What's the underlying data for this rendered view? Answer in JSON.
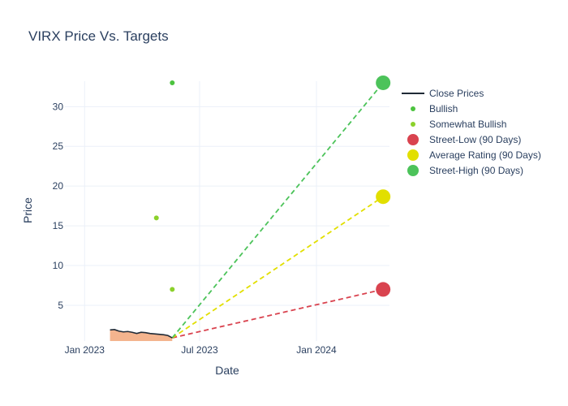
{
  "chart_data": {
    "type": "line",
    "title": "VIRX Price Vs. Targets",
    "xlabel": "Date",
    "ylabel": "Price",
    "xlim": [
      "2022-12-01",
      "2024-04-25"
    ],
    "ylim": [
      0.5,
      33.2
    ],
    "grid": true,
    "legend_placement": "right",
    "x_ticks": [
      {
        "date": "2023-01-01",
        "label": "Jan 2023"
      },
      {
        "date": "2023-07-01",
        "label": "Jul 2023"
      },
      {
        "date": "2024-01-01",
        "label": "Jan 2024"
      }
    ],
    "y_ticks": [
      5,
      10,
      15,
      20,
      25,
      30
    ],
    "colors": {
      "close": "#1f2a36",
      "close_fill": "#f4b48e",
      "bullish": "#4cc33f",
      "somewhat_bullish": "#8bd12b",
      "street_low": "#d9434f",
      "average": "#e2df00",
      "street_high": "#4cc35a"
    },
    "close_prices": [
      {
        "x": "2023-02-10",
        "y": 1.9
      },
      {
        "x": "2023-02-17",
        "y": 1.95
      },
      {
        "x": "2023-02-24",
        "y": 1.75
      },
      {
        "x": "2023-03-03",
        "y": 1.65
      },
      {
        "x": "2023-03-10",
        "y": 1.7
      },
      {
        "x": "2023-03-17",
        "y": 1.6
      },
      {
        "x": "2023-03-24",
        "y": 1.45
      },
      {
        "x": "2023-03-31",
        "y": 1.6
      },
      {
        "x": "2023-04-07",
        "y": 1.55
      },
      {
        "x": "2023-04-14",
        "y": 1.45
      },
      {
        "x": "2023-04-21",
        "y": 1.4
      },
      {
        "x": "2023-04-28",
        "y": 1.35
      },
      {
        "x": "2023-05-05",
        "y": 1.3
      },
      {
        "x": "2023-05-12",
        "y": 1.2
      },
      {
        "x": "2023-05-19",
        "y": 0.9
      }
    ],
    "bullish": [
      {
        "x": "2023-05-19",
        "y": 33
      }
    ],
    "somewhat_bullish": [
      {
        "x": "2023-04-24",
        "y": 16
      },
      {
        "x": "2023-05-19",
        "y": 7
      }
    ],
    "targets": {
      "start": {
        "x": "2023-05-19",
        "y": 0.9
      },
      "end_date": "2024-04-15",
      "street_low": 7,
      "average": 18.67,
      "street_high": 33
    },
    "legend": [
      {
        "label": "Close Prices",
        "kind": "line",
        "color": "#1f2a36"
      },
      {
        "label": "Bullish",
        "kind": "dot",
        "color": "#4cc33f"
      },
      {
        "label": "Somewhat Bullish",
        "kind": "dot",
        "color": "#8bd12b"
      },
      {
        "label": "Street-Low (90 Days)",
        "kind": "bigdot",
        "color": "#d9434f"
      },
      {
        "label": "Average Rating (90 Days)",
        "kind": "bigdot",
        "color": "#e2df00"
      },
      {
        "label": "Street-High (90 Days)",
        "kind": "bigdot",
        "color": "#4cc35a"
      }
    ]
  }
}
